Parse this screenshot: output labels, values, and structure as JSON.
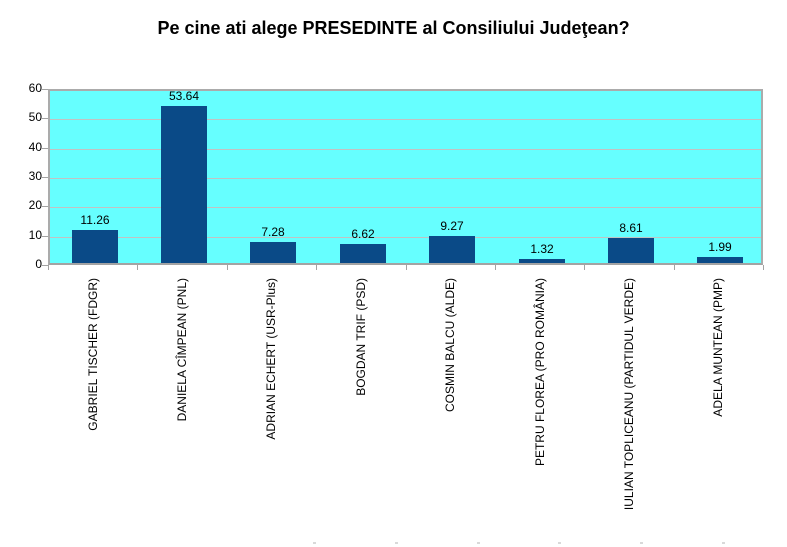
{
  "chart_data": {
    "type": "bar",
    "title": "Pe cine ati alege PRESEDINTE al Consiliului Judeţean?",
    "categories": [
      "GABRIEL TISCHER (FDGR)",
      "DANIELA CÎMPEAN (PNL)",
      "ADRIAN ECHERT (USR-Plus)",
      "BOGDAN TRIF (PSD)",
      "COSMIN BALCU (ALDE)",
      "PETRU FLOREA (PRO ROMÂNIA)",
      "IULIAN TOPLICEANU (PARTIDUL VERDE)",
      "ADELA MUNTEAN (PMP)"
    ],
    "values": [
      11.26,
      53.64,
      7.28,
      6.62,
      9.27,
      1.32,
      8.61,
      1.99
    ],
    "value_labels": [
      "11.26",
      "53.64",
      "7.28",
      "6.62",
      "9.27",
      "1.32",
      "8.61",
      "1.99"
    ],
    "xlabel": "",
    "ylabel": "",
    "ylim": [
      0,
      60
    ],
    "yticks": [
      0,
      10,
      20,
      30,
      40,
      50,
      60
    ],
    "grid": "horizontal",
    "legend": "none",
    "colors": {
      "bar": "#0a4a87",
      "plot_background": "#66ffff",
      "gridline": "#c2c2c2",
      "axis": "#a3a3a3",
      "text": "#000000",
      "page_background": "#ffffff"
    }
  },
  "artifacts": {
    "bottom_tick_xs": [
      313,
      395,
      477,
      558,
      640,
      722
    ]
  }
}
